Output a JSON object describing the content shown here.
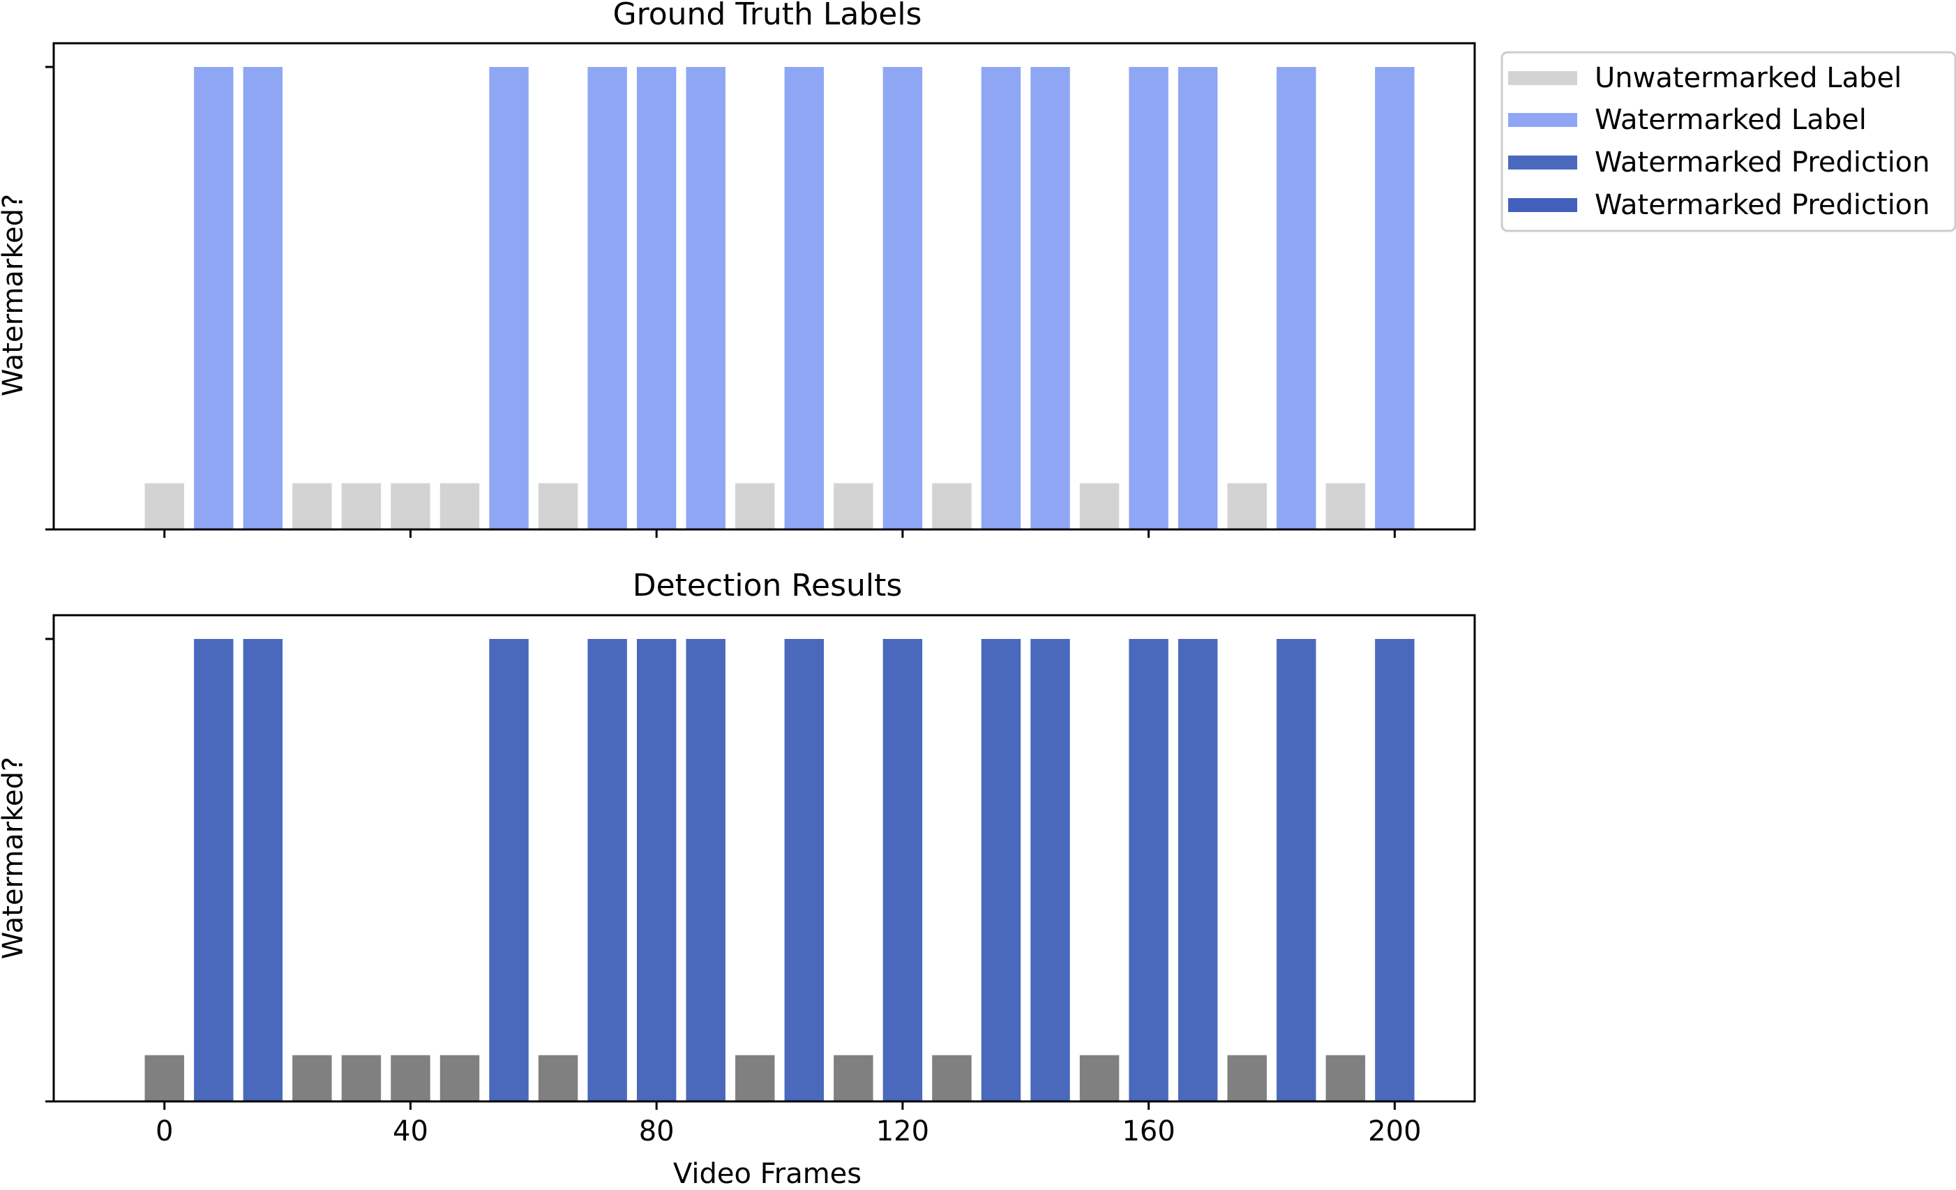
{
  "figure": {
    "legend": {
      "placement": "outside-right-top",
      "entries": [
        {
          "label": "Unwatermarked Label",
          "color": "#d3d3d3"
        },
        {
          "label": "Watermarked Label",
          "color": "#8fa6f5"
        },
        {
          "label": "Watermarked Prediction",
          "color": "#4a69bd"
        },
        {
          "label": "Watermarked Prediction",
          "color": "#4460bd"
        }
      ]
    }
  },
  "chart_data": [
    {
      "type": "bar",
      "title": "Ground Truth Labels",
      "xlabel": "",
      "ylabel": "Watermarked?",
      "xlim": [
        -18,
        213
      ],
      "ylim": [
        0,
        1
      ],
      "grid": false,
      "xticks": [
        0,
        40,
        80,
        120,
        160,
        200
      ],
      "show_xtick_labels": false,
      "bar_width": 6.4,
      "colors": {
        "unwatermarked": "#d3d3d3",
        "watermarked": "#8fa6f5"
      },
      "x": [
        0,
        8,
        16,
        24,
        32,
        40,
        48,
        56,
        64,
        72,
        80,
        88,
        96,
        104,
        112,
        120,
        128,
        136,
        144,
        152,
        160,
        168,
        176,
        184,
        192,
        200
      ],
      "values": [
        0.1,
        1,
        1,
        0.1,
        0.1,
        0.1,
        0.1,
        1,
        0.1,
        1,
        1,
        1,
        0.1,
        1,
        0.1,
        1,
        0.1,
        1,
        1,
        0.1,
        1,
        1,
        0.1,
        1,
        0.1,
        1
      ]
    },
    {
      "type": "bar",
      "title": "Detection Results",
      "xlabel": "Video Frames",
      "ylabel": "Watermarked?",
      "xlim": [
        -18,
        213
      ],
      "ylim": [
        0,
        1
      ],
      "grid": false,
      "xticks": [
        0,
        40,
        80,
        120,
        160,
        200
      ],
      "show_xtick_labels": true,
      "bar_width": 6.4,
      "colors": {
        "unwatermarked": "#808080",
        "watermarked": "#4a69bd"
      },
      "x": [
        0,
        8,
        16,
        24,
        32,
        40,
        48,
        56,
        64,
        72,
        80,
        88,
        96,
        104,
        112,
        120,
        128,
        136,
        144,
        152,
        160,
        168,
        176,
        184,
        192,
        200
      ],
      "values": [
        0.1,
        1,
        1,
        0.1,
        0.1,
        0.1,
        0.1,
        1,
        0.1,
        1,
        1,
        1,
        0.1,
        1,
        0.1,
        1,
        0.1,
        1,
        1,
        0.1,
        1,
        1,
        0.1,
        1,
        0.1,
        1
      ]
    }
  ]
}
